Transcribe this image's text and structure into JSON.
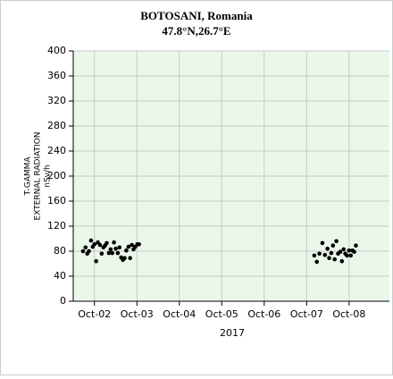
{
  "chart_data": {
    "type": "scatter",
    "title": "BOTOSANI, Romania",
    "subtitle": "47.8°N,26.7°E",
    "ylabel": [
      "T-GAMMA",
      "EXTERNAL RADIATION",
      "nSv/h"
    ],
    "xlabel": "2017",
    "x": [
      1.73,
      1.79,
      1.83,
      1.87,
      1.92,
      1.96,
      2.0,
      2.04,
      2.08,
      2.13,
      2.17,
      2.21,
      2.25,
      2.29,
      2.34,
      2.38,
      2.42,
      2.46,
      2.5,
      2.55,
      2.59,
      2.63,
      2.67,
      2.71,
      2.75,
      2.8,
      2.84,
      2.88,
      2.92,
      2.96,
      3.01,
      3.05,
      7.18,
      7.24,
      7.3,
      7.37,
      7.43,
      7.49,
      7.53,
      7.58,
      7.62,
      7.66,
      7.7,
      7.74,
      7.79,
      7.83,
      7.87,
      7.91,
      7.95,
      8.0,
      8.04,
      8.08,
      8.12,
      8.16
    ],
    "values": [
      80,
      86,
      76,
      80,
      97,
      87,
      91,
      64,
      94,
      90,
      76,
      86,
      89,
      93,
      77,
      83,
      77,
      94,
      84,
      77,
      86,
      70,
      66,
      69,
      81,
      87,
      69,
      90,
      83,
      87,
      91,
      91,
      73,
      63,
      76,
      93,
      74,
      84,
      69,
      77,
      89,
      67,
      96,
      76,
      79,
      64,
      83,
      76,
      73,
      81,
      73,
      81,
      79,
      89
    ],
    "color": "#000000",
    "xlim": [
      1.5,
      8.95
    ],
    "xticks": [
      {
        "value": 2,
        "label": "Oct-02"
      },
      {
        "value": 3,
        "label": "Oct-03"
      },
      {
        "value": 4,
        "label": "Oct-04"
      },
      {
        "value": 5,
        "label": "Oct-05"
      },
      {
        "value": 6,
        "label": "Oct-06"
      },
      {
        "value": 7,
        "label": "Oct-07"
      },
      {
        "value": 8,
        "label": "Oct-08"
      }
    ],
    "ylim": [
      0,
      400
    ],
    "yticks": [
      0,
      40,
      80,
      120,
      160,
      200,
      240,
      280,
      320,
      360,
      400
    ],
    "grid": true
  }
}
